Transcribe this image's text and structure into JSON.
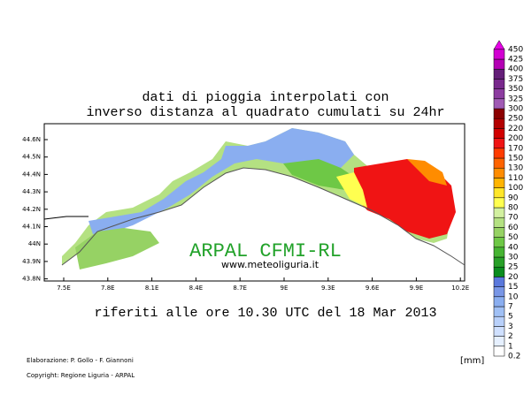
{
  "header": {
    "title_line1": "dati di pioggia interpolati con",
    "title_line2": "inverso distanza al quadrato cumulati su 24hr"
  },
  "map": {
    "lat_labels": [
      "44.6N",
      "44.5N",
      "44.4N",
      "44.3N",
      "44.2N",
      "44.1N",
      "44N",
      "43.9N",
      "43.8N"
    ],
    "lon_labels": [
      "7.5E",
      "7.8E",
      "8.1E",
      "8.4E",
      "8.7E",
      "9E",
      "9.3E",
      "9.6E",
      "9.9E",
      "10.2E"
    ],
    "logo": "ARPAL CFMI-RL",
    "website": "www.meteoliguria.it"
  },
  "subtitle": "riferiti alle ore 10.30 UTC del 18 Mar 2013",
  "footer": {
    "credit1": "Elaborazione: P. Gollo - F. Giannoni",
    "credit2": "Copyright: Regione Liguria - ARPAL",
    "unit": "[mm]"
  },
  "legend": {
    "levels": [
      0.2,
      1,
      2,
      3,
      5,
      7,
      10,
      15,
      20,
      25,
      30,
      40,
      50,
      60,
      70,
      80,
      90,
      100,
      110,
      130,
      150,
      170,
      200,
      220,
      250,
      300,
      325,
      350,
      375,
      400,
      425,
      450
    ],
    "colors": [
      "#ffffff",
      "#e6f0ff",
      "#cfe0ff",
      "#b8d0fa",
      "#a0c0f5",
      "#8aaef0",
      "#7896e6",
      "#5a78dc",
      "#0a8c1e",
      "#28a028",
      "#46b432",
      "#6ec846",
      "#96d264",
      "#b4e182",
      "#d2f0a0",
      "#ffff50",
      "#ffe628",
      "#ffb400",
      "#ff8c00",
      "#ff6400",
      "#ff3c00",
      "#f01414",
      "#d20000",
      "#b40000",
      "#8c0000",
      "#a05ab4",
      "#8c3ca0",
      "#78288c",
      "#641e78",
      "#b400b4",
      "#d200d2",
      "#e600e6"
    ]
  }
}
